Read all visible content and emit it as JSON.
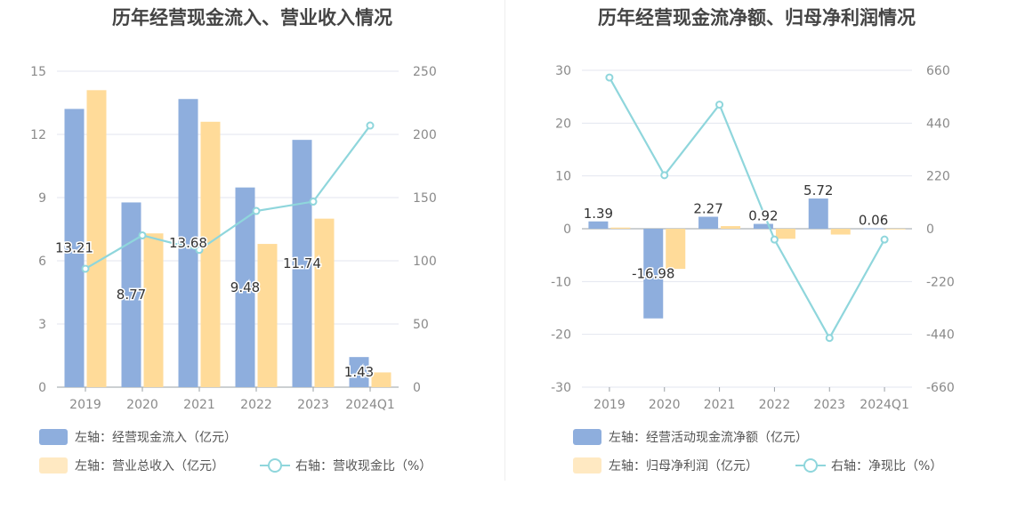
{
  "chart_data": [
    {
      "type": "bar",
      "title": "历年经营现金流入、营业收入情况",
      "categories": [
        "2019",
        "2020",
        "2021",
        "2022",
        "2023",
        "2024Q1"
      ],
      "left_axis": {
        "ticks": [
          "0",
          "3",
          "6",
          "9",
          "12",
          "15"
        ],
        "ylim": [
          0,
          15
        ]
      },
      "right_axis": {
        "ticks": [
          "0",
          "50",
          "100",
          "150",
          "200",
          "250"
        ],
        "ylim": [
          0,
          250
        ]
      },
      "series": [
        {
          "name": "左轴：经营现金流入（亿元）",
          "type": "bar",
          "axis": "left",
          "color": "#8eaedd",
          "values": [
            13.21,
            8.77,
            13.68,
            9.48,
            11.74,
            1.43
          ],
          "labels": [
            "13.21",
            "8.77",
            "13.68",
            "9.48",
            "11.74",
            "1.43"
          ]
        },
        {
          "name": "左轴：营业总收入（亿元）",
          "type": "bar",
          "axis": "left",
          "color": "#ffdb99",
          "values": [
            14.1,
            7.3,
            12.6,
            6.8,
            8.0,
            0.7
          ]
        },
        {
          "name": "右轴：营收现金比（%）",
          "type": "line",
          "axis": "right",
          "color": "#8fd6dc",
          "values": [
            93.7,
            120.1,
            108.6,
            139.4,
            146.8,
            207.0
          ]
        }
      ],
      "grid": true,
      "legend_position": "bottom"
    },
    {
      "type": "bar",
      "title": "历年经营现金流净额、归母净利润情况",
      "categories": [
        "2019",
        "2020",
        "2021",
        "2022",
        "2023",
        "2024Q1"
      ],
      "left_axis": {
        "ticks": [
          "-30",
          "-20",
          "-10",
          "0",
          "10",
          "20",
          "30"
        ],
        "ylim": [
          -30,
          30
        ]
      },
      "right_axis": {
        "ticks": [
          "-660",
          "-440",
          "-220",
          "0",
          "220",
          "440",
          "660"
        ],
        "ylim": [
          -660,
          660
        ]
      },
      "series": [
        {
          "name": "左轴：经营活动现金流净额（亿元）",
          "type": "bar",
          "axis": "left",
          "color": "#8eaedd",
          "values": [
            1.39,
            -16.98,
            2.27,
            0.92,
            5.72,
            0.06
          ],
          "labels": [
            "1.39",
            "-16.98",
            "2.27",
            "0.92",
            "5.72",
            "0.06"
          ]
        },
        {
          "name": "左轴：归母净利润（亿元）",
          "type": "bar",
          "axis": "left",
          "color": "#ffdb99",
          "values": [
            0.22,
            -7.6,
            0.5,
            -1.9,
            -1.1,
            -0.1
          ]
        },
        {
          "name": "右轴：净现比（%）",
          "type": "line",
          "axis": "right",
          "color": "#8fd6dc",
          "values": [
            630,
            223,
            517,
            -45,
            -455,
            -45
          ]
        }
      ],
      "grid": true,
      "legend_position": "bottom"
    }
  ]
}
